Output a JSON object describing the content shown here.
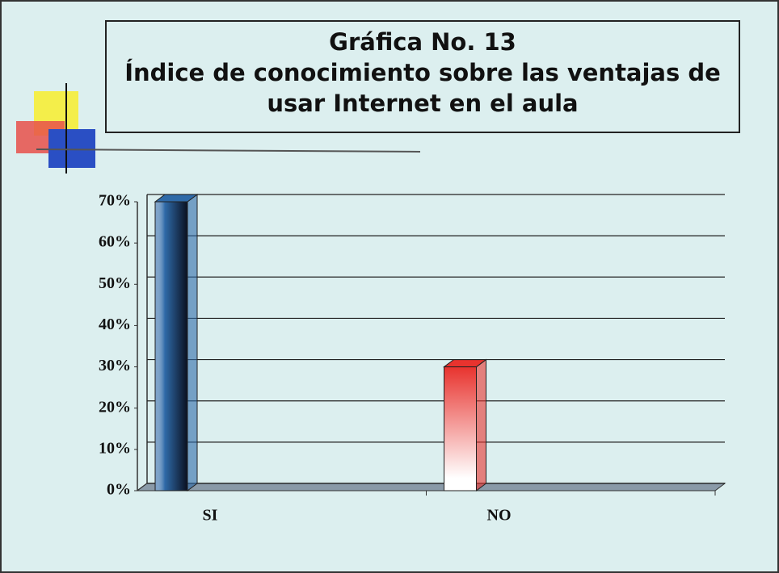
{
  "chart_data": {
    "type": "bar",
    "title": "Gráfica No. 13",
    "subtitle": "Índice de conocimiento sobre las ventajas de usar Internet en el aula",
    "categories": [
      "SI",
      "NO"
    ],
    "values": [
      70,
      30
    ],
    "colors": [
      "#2f6aa8",
      "#e8332e"
    ],
    "ylim": [
      0,
      70
    ],
    "yticks": [
      {
        "value": 0,
        "label": "0%"
      },
      {
        "value": 10,
        "label": "10%"
      },
      {
        "value": 20,
        "label": "20%"
      },
      {
        "value": 30,
        "label": "30%"
      },
      {
        "value": 40,
        "label": "40%"
      },
      {
        "value": 50,
        "label": "50%"
      },
      {
        "value": 60,
        "label": "60%"
      },
      {
        "value": 70,
        "label": "70%"
      }
    ],
    "grid": true
  }
}
